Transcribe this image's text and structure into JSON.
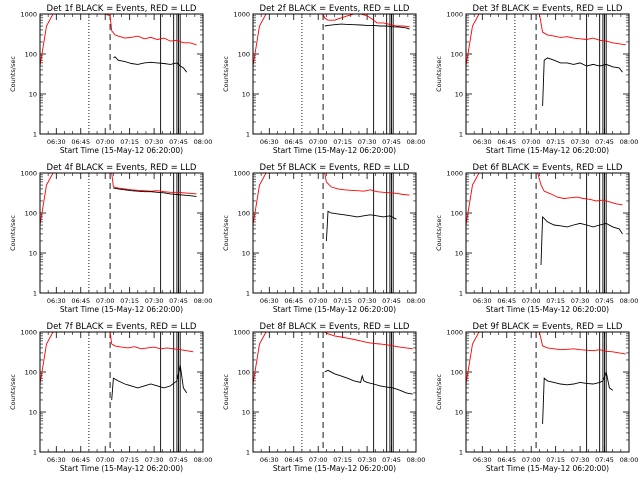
{
  "page": {
    "background": "#ffffff",
    "colors": {
      "events": "#000000",
      "lld": "#ff0000",
      "axes": "#000000"
    }
  },
  "shared_axes": {
    "ylabel": "Counts/sec",
    "xlabel": "Start Time (15-May-12 06:20:00)",
    "xticks": [
      "06:30",
      "06:45",
      "07:00",
      "07:15",
      "07:30",
      "07:45",
      "08:00"
    ],
    "yticks": [
      "1",
      "10",
      "100",
      "1000"
    ]
  },
  "chart_data": [
    {
      "type": "line",
      "title": "Det 1f BLACK = Events, RED = LLD",
      "xlabel": "Start Time (15-May-12 06:20:00)",
      "ylabel": "Counts/sec",
      "x_unit": "minutes after 06:20:00",
      "xlim": [
        0,
        100
      ],
      "ylim": [
        1,
        1000
      ],
      "yscale": "log",
      "markers_dotted": [
        30
      ],
      "markers_dashed": [
        43
      ],
      "markers_solid": [
        74,
        82,
        84,
        85,
        86
      ],
      "saa_label_x": 86,
      "series": [
        {
          "name": "RED = LLD",
          "color": "#ff0000",
          "x": [
            0,
            4,
            8,
            12,
            16,
            25,
            35,
            40,
            43,
            44,
            46,
            48,
            52,
            56,
            60,
            64,
            68,
            72,
            76,
            80,
            84,
            88,
            92,
            96
          ],
          "y": [
            50,
            500,
            1000,
            1000,
            1000,
            1000,
            1000,
            1000,
            900,
            380,
            300,
            280,
            250,
            260,
            280,
            240,
            260,
            230,
            250,
            210,
            220,
            190,
            190,
            170
          ]
        },
        {
          "name": "BLACK = Events",
          "color": "#000000",
          "x": [
            45,
            46,
            48,
            52,
            56,
            60,
            64,
            68,
            72,
            76,
            80,
            84,
            86,
            88,
            90
          ],
          "y": [
            80,
            85,
            70,
            65,
            58,
            55,
            60,
            62,
            60,
            58,
            55,
            60,
            50,
            45,
            35
          ]
        }
      ]
    },
    {
      "type": "line",
      "title": "Det 2f BLACK = Events, RED = LLD",
      "xlabel": "Start Time (15-May-12 06:20:00)",
      "ylabel": "Counts/sec",
      "x_unit": "minutes after 06:20:00",
      "xlim": [
        0,
        100
      ],
      "ylim": [
        1,
        1000
      ],
      "yscale": "log",
      "markers_dotted": [
        30
      ],
      "markers_dashed": [
        43
      ],
      "markers_solid": [
        74,
        82,
        84,
        85,
        86
      ],
      "saa_label_x": 86,
      "series": [
        {
          "name": "RED = LLD",
          "color": "#ff0000",
          "x": [
            0,
            4,
            8,
            12,
            16,
            25,
            35,
            40,
            43,
            44,
            46,
            50,
            54,
            58,
            62,
            66,
            70,
            72,
            74,
            76,
            80,
            84,
            88,
            92,
            96
          ],
          "y": [
            50,
            500,
            1000,
            1000,
            1000,
            1000,
            1000,
            1000,
            1000,
            800,
            700,
            700,
            800,
            900,
            1000,
            1000,
            900,
            800,
            700,
            600,
            600,
            550,
            500,
            500,
            480
          ]
        },
        {
          "name": "BLACK = Events",
          "color": "#000000",
          "x": [
            44,
            46,
            50,
            54,
            58,
            62,
            66,
            70,
            74,
            78,
            82,
            86,
            90,
            94,
            96
          ],
          "y": [
            500,
            520,
            540,
            560,
            550,
            540,
            530,
            520,
            520,
            500,
            500,
            480,
            470,
            450,
            420
          ]
        }
      ]
    },
    {
      "type": "line",
      "title": "Det 3f BLACK = Events, RED = LLD",
      "xlabel": "Start Time (15-May-12 06:20:00)",
      "ylabel": "Counts/sec",
      "x_unit": "minutes after 06:20:00",
      "xlim": [
        0,
        100
      ],
      "ylim": [
        1,
        1000
      ],
      "yscale": "log",
      "markers_dotted": [
        30
      ],
      "markers_dashed": [
        43
      ],
      "markers_solid": [
        74,
        82,
        84,
        85,
        86
      ],
      "saa_label_x": 86,
      "series": [
        {
          "name": "RED = LLD",
          "color": "#ff0000",
          "x": [
            0,
            4,
            8,
            12,
            16,
            25,
            35,
            40,
            45,
            47,
            50,
            54,
            58,
            62,
            66,
            70,
            74,
            78,
            82,
            86,
            90,
            94,
            98
          ],
          "y": [
            50,
            500,
            1000,
            1000,
            1000,
            1000,
            1000,
            1000,
            1000,
            350,
            300,
            280,
            260,
            270,
            250,
            240,
            230,
            250,
            220,
            210,
            190,
            180,
            170
          ]
        },
        {
          "name": "BLACK = Events",
          "color": "#000000",
          "x": [
            47,
            48,
            50,
            54,
            58,
            62,
            66,
            70,
            74,
            78,
            82,
            86,
            90,
            94,
            96
          ],
          "y": [
            5,
            70,
            80,
            70,
            60,
            60,
            55,
            60,
            50,
            55,
            50,
            55,
            48,
            45,
            35
          ]
        }
      ]
    },
    {
      "type": "line",
      "title": "Det 4f BLACK = Events, RED = LLD",
      "xlabel": "Start Time (15-May-12 06:20:00)",
      "ylabel": "Counts/sec",
      "x_unit": "minutes after 06:20:00",
      "xlim": [
        0,
        100
      ],
      "ylim": [
        1,
        1000
      ],
      "yscale": "log",
      "markers_dotted": [
        30
      ],
      "markers_dashed": [
        43
      ],
      "markers_solid": [
        74,
        82,
        84,
        85,
        86
      ],
      "saa_label_x": 86,
      "series": [
        {
          "name": "RED = LLD",
          "color": "#ff0000",
          "x": [
            0,
            4,
            8,
            12,
            16,
            25,
            35,
            40,
            44,
            45,
            48,
            52,
            56,
            60,
            64,
            68,
            72,
            76,
            80,
            84,
            88,
            92,
            96
          ],
          "y": [
            50,
            500,
            1000,
            1000,
            1000,
            1000,
            1000,
            1000,
            1000,
            450,
            420,
            400,
            380,
            370,
            360,
            350,
            360,
            340,
            330,
            330,
            320,
            310,
            300
          ]
        },
        {
          "name": "BLACK = Events",
          "color": "#000000",
          "x": [
            45,
            48,
            52,
            56,
            60,
            64,
            68,
            72,
            76,
            80,
            84,
            88,
            92,
            96
          ],
          "y": [
            420,
            400,
            380,
            360,
            350,
            340,
            340,
            330,
            320,
            300,
            290,
            280,
            270,
            260
          ]
        }
      ]
    },
    {
      "type": "line",
      "title": "Det 5f BLACK = Events, RED = LLD",
      "xlabel": "Start Time (15-May-12 06:20:00)",
      "ylabel": "Counts/sec",
      "x_unit": "minutes after 06:20:00",
      "xlim": [
        0,
        100
      ],
      "ylim": [
        1,
        1000
      ],
      "yscale": "log",
      "markers_dotted": [
        30
      ],
      "markers_dashed": [
        43
      ],
      "markers_solid": [
        74,
        82,
        84,
        85,
        86
      ],
      "saa_label_x": 86,
      "series": [
        {
          "name": "RED = LLD",
          "color": "#ff0000",
          "x": [
            0,
            4,
            8,
            12,
            16,
            25,
            35,
            40,
            44,
            45,
            48,
            52,
            56,
            60,
            64,
            68,
            72,
            76,
            80,
            84,
            88,
            92,
            96
          ],
          "y": [
            50,
            500,
            1000,
            1000,
            1000,
            1000,
            1000,
            1000,
            1000,
            600,
            450,
            400,
            380,
            370,
            360,
            350,
            380,
            340,
            330,
            320,
            310,
            290,
            280
          ]
        },
        {
          "name": "BLACK = Events",
          "color": "#000000",
          "x": [
            45,
            46,
            48,
            52,
            56,
            60,
            64,
            68,
            72,
            76,
            80,
            84,
            88
          ],
          "y": [
            20,
            110,
            100,
            95,
            90,
            85,
            80,
            85,
            90,
            85,
            80,
            85,
            70
          ]
        }
      ]
    },
    {
      "type": "line",
      "title": "Det 6f BLACK = Events, RED = LLD",
      "xlabel": "Start Time (15-May-12 06:20:00)",
      "ylabel": "Counts/sec",
      "x_unit": "minutes after 06:20:00",
      "xlim": [
        0,
        100
      ],
      "ylim": [
        1,
        1000
      ],
      "yscale": "log",
      "markers_dotted": [
        30
      ],
      "markers_dashed": [
        43
      ],
      "markers_solid": [
        74,
        82,
        84,
        85,
        86
      ],
      "saa_label_x": 86,
      "series": [
        {
          "name": "RED = LLD",
          "color": "#ff0000",
          "x": [
            0,
            4,
            8,
            12,
            16,
            25,
            35,
            40,
            44,
            46,
            48,
            52,
            56,
            60,
            64,
            68,
            72,
            76,
            80,
            84,
            88,
            92,
            96
          ],
          "y": [
            50,
            500,
            1000,
            1000,
            1000,
            1000,
            1000,
            1000,
            1000,
            500,
            350,
            300,
            250,
            230,
            240,
            250,
            230,
            220,
            200,
            210,
            190,
            170,
            160
          ]
        },
        {
          "name": "BLACK = Events",
          "color": "#000000",
          "x": [
            46,
            47,
            50,
            54,
            58,
            62,
            66,
            70,
            74,
            78,
            82,
            86,
            90,
            94,
            96
          ],
          "y": [
            5,
            80,
            60,
            50,
            48,
            45,
            50,
            55,
            50,
            45,
            50,
            55,
            45,
            40,
            30
          ]
        }
      ]
    },
    {
      "type": "line",
      "title": "Det 7f BLACK = Events, RED = LLD",
      "xlabel": "Start Time (15-May-12 06:20:00)",
      "ylabel": "Counts/sec",
      "x_unit": "minutes after 06:20:00",
      "xlim": [
        0,
        100
      ],
      "ylim": [
        1,
        1000
      ],
      "yscale": "log",
      "markers_dotted": [
        30
      ],
      "markers_dashed": [
        43
      ],
      "markers_solid": [
        74,
        82,
        84,
        85,
        86
      ],
      "saa_label_x": 86,
      "series": [
        {
          "name": "RED = LLD",
          "color": "#ff0000",
          "x": [
            0,
            4,
            8,
            12,
            16,
            25,
            35,
            40,
            43,
            44,
            46,
            50,
            54,
            58,
            62,
            66,
            70,
            74,
            78,
            82,
            86,
            90,
            94
          ],
          "y": [
            50,
            500,
            1000,
            1000,
            1000,
            1000,
            1000,
            1000,
            1000,
            500,
            450,
            420,
            400,
            430,
            380,
            400,
            420,
            380,
            400,
            380,
            360,
            340,
            320
          ]
        },
        {
          "name": "BLACK = Events",
          "color": "#000000",
          "x": [
            44,
            45,
            48,
            52,
            56,
            60,
            64,
            68,
            72,
            76,
            80,
            84,
            86,
            88,
            90
          ],
          "y": [
            20,
            70,
            60,
            50,
            45,
            40,
            45,
            50,
            45,
            40,
            45,
            60,
            150,
            40,
            30
          ]
        }
      ]
    },
    {
      "type": "line",
      "title": "Det 8f BLACK = Events, RED = LLD",
      "xlabel": "Start Time (15-May-12 06:20:00)",
      "ylabel": "Counts/sec",
      "x_unit": "minutes after 06:20:00",
      "xlim": [
        0,
        100
      ],
      "ylim": [
        1,
        1000
      ],
      "yscale": "log",
      "markers_dotted": [
        30
      ],
      "markers_dashed": [
        43
      ],
      "markers_solid": [
        74,
        82,
        84,
        85,
        86
      ],
      "saa_label_x": 86,
      "series": [
        {
          "name": "RED = LLD",
          "color": "#ff0000",
          "x": [
            0,
            4,
            8,
            12,
            16,
            25,
            35,
            40,
            44,
            46,
            50,
            54,
            58,
            62,
            66,
            70,
            74,
            78,
            82,
            86,
            90,
            94,
            98
          ],
          "y": [
            50,
            500,
            1000,
            1000,
            1000,
            1000,
            1000,
            1000,
            1000,
            900,
            800,
            750,
            700,
            650,
            600,
            550,
            520,
            500,
            480,
            450,
            420,
            400,
            380
          ]
        },
        {
          "name": "BLACK = Events",
          "color": "#000000",
          "x": [
            44,
            46,
            50,
            54,
            58,
            62,
            66,
            67,
            68,
            70,
            74,
            78,
            82,
            86,
            90,
            94,
            98
          ],
          "y": [
            100,
            110,
            90,
            80,
            70,
            60,
            55,
            80,
            60,
            55,
            50,
            45,
            42,
            40,
            35,
            30,
            28
          ]
        }
      ]
    },
    {
      "type": "line",
      "title": "Det 9f BLACK = Events, RED = LLD",
      "xlabel": "Start Time (15-May-12 06:20:00)",
      "ylabel": "Counts/sec",
      "x_unit": "minutes after 06:20:00",
      "xlim": [
        0,
        100
      ],
      "ylim": [
        1,
        1000
      ],
      "yscale": "log",
      "markers_dotted": [
        30
      ],
      "markers_dashed": [
        43
      ],
      "markers_solid": [
        74,
        82,
        84,
        85,
        86
      ],
      "saa_label_x": 86,
      "series": [
        {
          "name": "RED = LLD",
          "color": "#ff0000",
          "x": [
            0,
            4,
            8,
            12,
            16,
            25,
            35,
            40,
            45,
            47,
            50,
            54,
            58,
            62,
            66,
            70,
            74,
            78,
            82,
            86,
            90,
            94,
            98
          ],
          "y": [
            50,
            500,
            1000,
            1000,
            1000,
            1000,
            1000,
            1000,
            1000,
            450,
            400,
            380,
            360,
            370,
            380,
            360,
            350,
            340,
            360,
            330,
            320,
            300,
            280
          ]
        },
        {
          "name": "BLACK = Events",
          "color": "#000000",
          "x": [
            47,
            48,
            50,
            54,
            58,
            62,
            66,
            70,
            74,
            78,
            82,
            84,
            86,
            88,
            90
          ],
          "y": [
            5,
            70,
            60,
            55,
            50,
            48,
            50,
            55,
            52,
            50,
            55,
            60,
            100,
            40,
            35
          ]
        }
      ]
    }
  ]
}
